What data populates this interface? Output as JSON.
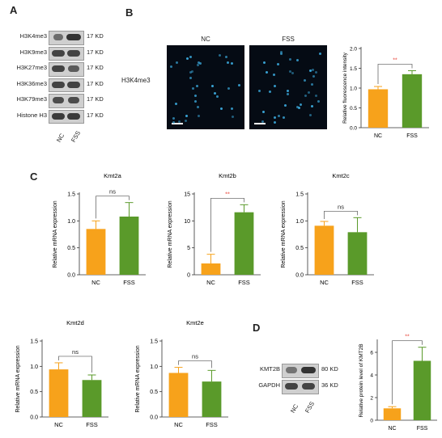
{
  "panels": {
    "A": "A",
    "B": "B",
    "C": "C",
    "D": "D"
  },
  "colors": {
    "nc": "#f7a21b",
    "fss": "#5a9a2a",
    "sig": "#e8463a",
    "axis": "#333333",
    "band": "#2a2a2a"
  },
  "western_a": {
    "rows": [
      {
        "label": "H3K4me3",
        "kd": "17 KD"
      },
      {
        "label": "H3K9me3",
        "kd": "17 KD"
      },
      {
        "label": "H3K27me3",
        "kd": "17 KD"
      },
      {
        "label": "H3K36me3",
        "kd": "17 KD"
      },
      {
        "label": "H3K79me3",
        "kd": "17 KD"
      },
      {
        "label": "Histone H3",
        "kd": "17 KD"
      }
    ],
    "lanes": [
      "NC",
      "FSS"
    ]
  },
  "panel_b": {
    "row_label": "H3K4me3",
    "image_titles": [
      "NC",
      "FSS"
    ]
  },
  "western_d": {
    "rows": [
      {
        "label": "KMT2B",
        "kd": "80 KD"
      },
      {
        "label": "GAPDH",
        "kd": "36 KD"
      }
    ],
    "lanes": [
      "NC",
      "FSS"
    ]
  },
  "chart_data": [
    {
      "id": "b",
      "type": "bar",
      "categories": [
        "NC",
        "FSS"
      ],
      "values": [
        0.97,
        1.35
      ],
      "errors": [
        0.07,
        0.09
      ],
      "title": "",
      "xlabel": "",
      "ylabel": "Relative fluorescence intensity",
      "ylim": [
        0,
        2.0
      ],
      "yticks": [
        "0.0",
        "0.5",
        "1.0",
        "1.5",
        "2.0"
      ],
      "sig": "**"
    },
    {
      "id": "kmt2a",
      "type": "bar",
      "categories": [
        "NC",
        "FSS"
      ],
      "values": [
        0.85,
        1.08
      ],
      "errors": [
        0.15,
        0.26
      ],
      "title": "Kmt2a",
      "xlabel": "",
      "ylabel": "Relative mRNA expression",
      "ylim": [
        0,
        1.5
      ],
      "yticks": [
        "0.0",
        "0.5",
        "1.0",
        "1.5"
      ],
      "sig": "ns"
    },
    {
      "id": "kmt2b",
      "type": "bar",
      "categories": [
        "NC",
        "FSS"
      ],
      "values": [
        2.1,
        11.6
      ],
      "errors": [
        1.7,
        1.4
      ],
      "title": "Kmt2b",
      "xlabel": "",
      "ylabel": "Relative mRNA expression",
      "ylim": [
        0,
        15
      ],
      "yticks": [
        "0",
        "5",
        "10",
        "15"
      ],
      "sig": "**"
    },
    {
      "id": "kmt2c",
      "type": "bar",
      "categories": [
        "NC",
        "FSS"
      ],
      "values": [
        0.91,
        0.79
      ],
      "errors": [
        0.08,
        0.27
      ],
      "title": "Kmt2c",
      "xlabel": "",
      "ylabel": "Relative mRNA expression",
      "ylim": [
        0,
        1.5
      ],
      "yticks": [
        "0.0",
        "0.5",
        "1.0",
        "1.5"
      ],
      "sig": "ns"
    },
    {
      "id": "kmt2d",
      "type": "bar",
      "categories": [
        "NC",
        "FSS"
      ],
      "values": [
        0.94,
        0.73
      ],
      "errors": [
        0.13,
        0.1
      ],
      "title": "Kmt2d",
      "xlabel": "",
      "ylabel": "Relative mRNA expression",
      "ylim": [
        0,
        1.5
      ],
      "yticks": [
        "0.0",
        "0.5",
        "1.0",
        "1.5"
      ],
      "sig": "ns"
    },
    {
      "id": "kmt2e",
      "type": "bar",
      "categories": [
        "NC",
        "FSS"
      ],
      "values": [
        0.87,
        0.7
      ],
      "errors": [
        0.11,
        0.22
      ],
      "title": "Kmt2e",
      "xlabel": "",
      "ylabel": "Relative mRNA expression",
      "ylim": [
        0,
        1.5
      ],
      "yticks": [
        "0.0",
        "0.5",
        "1.0",
        "1.5"
      ],
      "sig": "ns"
    },
    {
      "id": "d",
      "type": "bar",
      "categories": [
        "NC",
        "FSS"
      ],
      "values": [
        1.05,
        5.25
      ],
      "errors": [
        0.15,
        1.2
      ],
      "title": "",
      "xlabel": "",
      "ylabel": "Relative protein level of KMT2B",
      "ylim": [
        0,
        7
      ],
      "yticks": [
        "0",
        "2",
        "4",
        "6"
      ],
      "sig": "**"
    }
  ]
}
